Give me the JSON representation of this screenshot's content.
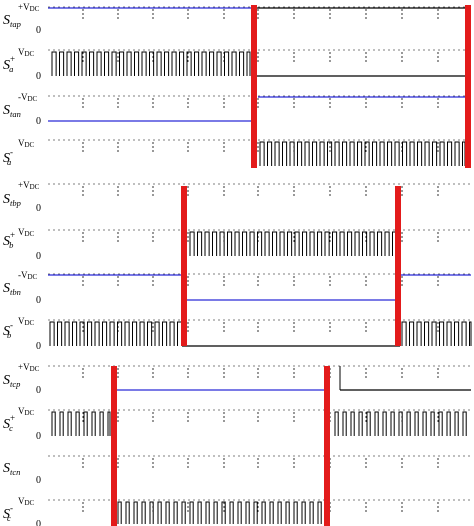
{
  "colors": {
    "trace": "#000000",
    "reference": "#2b2bd6",
    "marker": "#e31b1b",
    "grid": "#000000"
  },
  "rows": [
    {
      "group": "a",
      "base": "S",
      "sub": "tap",
      "sign": "",
      "level": "+V",
      "level_sub": "DC",
      "zero": "0"
    },
    {
      "group": "a",
      "base": "S",
      "sub": "a",
      "sign": "+",
      "level": "V",
      "level_sub": "DC",
      "zero": "0"
    },
    {
      "group": "a",
      "base": "S",
      "sub": "tan",
      "sign": "",
      "level": "-V",
      "level_sub": "DC",
      "zero": "0"
    },
    {
      "group": "a",
      "base": "S",
      "sub": "a",
      "sign": "-",
      "level": "V",
      "level_sub": "DC",
      "zero": ""
    },
    {
      "group": "b",
      "base": "S",
      "sub": "tbp",
      "sign": "",
      "level": "+V",
      "level_sub": "DC",
      "zero": "0"
    },
    {
      "group": "b",
      "base": "S",
      "sub": "b",
      "sign": "+",
      "level": "V",
      "level_sub": "DC",
      "zero": "0"
    },
    {
      "group": "b",
      "base": "S",
      "sub": "tbn",
      "sign": "",
      "level": "-V",
      "level_sub": "DC",
      "zero": "0"
    },
    {
      "group": "b",
      "base": "S",
      "sub": "b",
      "sign": "-",
      "level": "V",
      "level_sub": "DC",
      "zero": "0"
    },
    {
      "group": "c",
      "base": "S",
      "sub": "tcp",
      "sign": "",
      "level": "+V",
      "level_sub": "DC",
      "zero": "0"
    },
    {
      "group": "c",
      "base": "S",
      "sub": "c",
      "sign": "+",
      "level": "V",
      "level_sub": "DC",
      "zero": "0"
    },
    {
      "group": "c",
      "base": "S",
      "sub": "tcn",
      "sign": "",
      "level": "",
      "level_sub": "",
      "zero": "0"
    },
    {
      "group": "c",
      "base": "S",
      "sub": "c",
      "sign": "-",
      "level": "V",
      "level_sub": "DC",
      "zero": "0"
    }
  ]
}
